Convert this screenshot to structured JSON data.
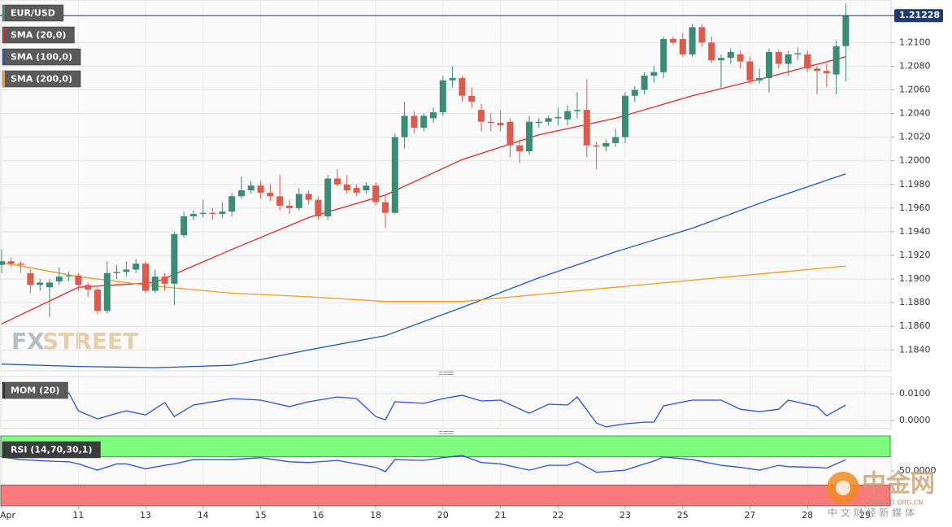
{
  "chart_data": [
    {
      "type": "candlestick",
      "title": "EUR/USD",
      "categories": [
        "Apr",
        null,
        null,
        null,
        null,
        null,
        null,
        null,
        "11",
        null,
        null,
        null,
        null,
        null,
        null,
        "13",
        null,
        null,
        null,
        null,
        null,
        "14",
        null,
        null,
        null,
        null,
        null,
        "15",
        null,
        null,
        null,
        null,
        null,
        "16",
        null,
        null,
        null,
        null,
        null,
        "18",
        null,
        null,
        null,
        null,
        null,
        null,
        "20",
        null,
        null,
        null,
        null,
        null,
        "21",
        null,
        null,
        null,
        null,
        null,
        "22",
        null,
        null,
        null,
        null,
        null,
        null,
        "23",
        null,
        null,
        null,
        null,
        null,
        "25",
        null,
        null,
        null,
        null,
        null,
        null,
        "27",
        null,
        null,
        null,
        null,
        null,
        "28",
        null,
        null,
        null,
        null,
        null,
        "29"
      ],
      "open": [
        1.1912,
        1.1915,
        1.1913,
        1.1905,
        1.1895,
        1.1893,
        1.1898,
        1.1903,
        1.1903,
        1.1895,
        1.1891,
        1.1873,
        1.1905,
        1.1906,
        1.1908,
        1.1913,
        1.189,
        1.1902,
        1.1896,
        1.1937,
        1.1953,
        1.1955,
        1.1956,
        1.1955,
        1.1957,
        1.197,
        1.1975,
        1.1979,
        1.1973,
        1.197,
        1.1962,
        1.196,
        1.1972,
        1.1967,
        1.1953,
        1.1985,
        1.198,
        1.1977,
        1.1975,
        1.1979,
        1.1965,
        1.1956,
        1.202,
        1.2038,
        1.2028,
        1.2036,
        1.2041,
        1.2068,
        1.207,
        1.2055,
        1.2043,
        1.2033,
        1.2032,
        1.2033,
        1.2013,
        1.2008,
        1.2032,
        1.2033,
        1.2036,
        1.2035,
        1.2042,
        1.2043,
        1.2013,
        1.2012,
        1.2015,
        1.202,
        1.2055,
        1.206,
        1.2072,
        1.2075,
        1.2103,
        1.2103,
        1.209,
        1.2113,
        1.21,
        1.2085,
        1.2087,
        1.209,
        1.2084,
        1.2068,
        1.207,
        1.2092,
        1.2082,
        1.209,
        1.209,
        1.2078,
        1.2076,
        1.2073,
        1.2097,
        null,
        null
      ],
      "high": [
        1.1925,
        1.1918,
        1.1915,
        1.1908,
        1.19,
        1.19,
        1.191,
        1.1906,
        1.1905,
        1.1897,
        1.1893,
        1.1915,
        1.1912,
        1.1915,
        1.1917,
        1.1915,
        1.1908,
        1.1905,
        1.194,
        1.1957,
        1.1958,
        1.1967,
        1.196,
        1.1965,
        1.1973,
        1.1987,
        1.1983,
        1.1983,
        1.198,
        1.1988,
        1.1967,
        1.1977,
        1.1975,
        1.197,
        1.1988,
        1.1993,
        1.1988,
        1.198,
        1.1982,
        1.1982,
        1.197,
        1.2023,
        1.205,
        1.2042,
        1.204,
        1.2045,
        1.2072,
        1.208,
        1.2072,
        1.2062,
        1.2048,
        1.204,
        1.2043,
        1.2036,
        1.2018,
        1.2038,
        1.2036,
        1.2038,
        1.2045,
        1.2047,
        1.2058,
        1.2069,
        1.2016,
        1.2018,
        1.2027,
        1.2058,
        1.2063,
        1.2075,
        1.208,
        1.2105,
        1.2105,
        1.2108,
        1.2116,
        1.2116,
        1.2105,
        1.209,
        1.2095,
        1.2093,
        1.2088,
        1.2078,
        1.2095,
        1.2094,
        1.2093,
        1.2096,
        1.2093,
        1.208,
        1.2082,
        1.2102,
        1.2133,
        null,
        null
      ],
      "low": [
        1.1905,
        1.191,
        1.1905,
        1.1888,
        1.189,
        1.1868,
        1.1895,
        1.1898,
        1.189,
        1.1885,
        1.187,
        1.1871,
        1.19,
        1.1902,
        1.1905,
        1.1888,
        1.1888,
        1.189,
        1.1878,
        1.1935,
        1.195,
        1.1952,
        1.195,
        1.1952,
        1.1953,
        1.1968,
        1.1972,
        1.1968,
        1.1966,
        1.1958,
        1.1955,
        1.1958,
        1.1963,
        1.195,
        1.195,
        1.1978,
        1.1972,
        1.197,
        1.1972,
        1.1962,
        1.1943,
        1.1955,
        1.201,
        1.2023,
        1.2025,
        1.2032,
        1.2038,
        1.2062,
        1.205,
        1.2045,
        1.2025,
        1.2025,
        1.2025,
        1.2003,
        1.1998,
        1.2005,
        1.2028,
        1.203,
        1.203,
        1.203,
        1.2036,
        1.2003,
        1.1993,
        1.2008,
        1.2012,
        1.2015,
        1.205,
        1.2056,
        1.2066,
        1.207,
        1.2098,
        1.2088,
        1.2088,
        1.2096,
        1.2083,
        1.2062,
        1.2082,
        1.2078,
        1.2065,
        1.2065,
        1.2058,
        1.2078,
        1.2072,
        1.2085,
        1.2075,
        1.2056,
        1.2062,
        1.2056,
        1.2067,
        null,
        null
      ],
      "close": [
        1.1915,
        1.1913,
        1.1912,
        1.1895,
        1.1897,
        1.1897,
        1.1902,
        1.1903,
        1.1895,
        1.1891,
        1.1873,
        1.1905,
        1.1906,
        1.1908,
        1.1913,
        1.189,
        1.1902,
        1.1896,
        1.1938,
        1.1953,
        1.1955,
        1.1956,
        1.1955,
        1.1957,
        1.197,
        1.1975,
        1.1979,
        1.1973,
        1.197,
        1.1962,
        1.196,
        1.1972,
        1.1967,
        1.1953,
        1.1985,
        1.198,
        1.1975,
        1.1973,
        1.1979,
        1.1965,
        1.1956,
        1.202,
        1.2038,
        1.2028,
        1.2038,
        1.2041,
        1.2068,
        1.207,
        1.2055,
        1.205,
        1.2033,
        1.2032,
        1.203,
        1.2013,
        1.2008,
        1.2033,
        1.2033,
        1.2036,
        1.2037,
        1.2042,
        1.2043,
        1.2013,
        1.2012,
        1.2015,
        1.202,
        1.2055,
        1.206,
        1.2072,
        1.2075,
        1.2103,
        1.21,
        1.209,
        1.2113,
        1.21,
        1.2085,
        1.2087,
        1.2092,
        1.2084,
        1.2068,
        1.207,
        1.2092,
        1.2082,
        1.209,
        1.2091,
        1.2078,
        1.2076,
        1.2074,
        1.2097,
        1.2123,
        null,
        null
      ],
      "up_color": "#3b8c76",
      "down_color": "#e05a4c",
      "series": [
        {
          "name": "SMA (20,0)",
          "color": "#e8262a",
          "x": [
            0,
            8,
            16,
            24,
            32,
            40,
            48,
            56,
            64,
            72,
            80,
            88
          ],
          "values": [
            1.1862,
            1.1893,
            1.1897,
            1.1925,
            1.1952,
            1.1971,
            1.2001,
            1.2022,
            1.2036,
            1.2055,
            1.2071,
            1.2088
          ]
        },
        {
          "name": "SMA (100,0)",
          "color": "#1f5bb5",
          "x": [
            0,
            8,
            16,
            24,
            32,
            40,
            48,
            56,
            64,
            72,
            80,
            88
          ],
          "values": [
            1.1828,
            1.1826,
            1.1825,
            1.1827,
            1.184,
            1.1852,
            1.1876,
            1.1901,
            1.1923,
            1.1943,
            1.1967,
            1.1989
          ]
        },
        {
          "name": "SMA (200,0)",
          "color": "#f39c1f",
          "x": [
            0,
            8,
            16,
            24,
            32,
            40,
            48,
            56,
            64,
            72,
            80,
            88
          ],
          "values": [
            1.1914,
            1.1902,
            1.1894,
            1.1888,
            1.1885,
            1.1881,
            1.1881,
            1.1887,
            1.1893,
            1.1899,
            1.1905,
            1.1911
          ]
        }
      ],
      "ylim": [
        1.1823,
        1.2136
      ],
      "yticks": [
        {
          "value": 1.21,
          "label": "1.2100"
        },
        {
          "value": 1.208,
          "label": "1.2080"
        },
        {
          "value": 1.206,
          "label": "1.2060"
        },
        {
          "value": 1.204,
          "label": "1.2040"
        },
        {
          "value": 1.202,
          "label": "1.2020"
        },
        {
          "value": 1.2,
          "label": "1.2000"
        },
        {
          "value": 1.198,
          "label": "1.1980"
        },
        {
          "value": 1.196,
          "label": "1.1960"
        },
        {
          "value": 1.194,
          "label": "1.1940"
        },
        {
          "value": 1.192,
          "label": "1.1920"
        },
        {
          "value": 1.19,
          "label": "1.1900"
        },
        {
          "value": 1.188,
          "label": "1.1880"
        },
        {
          "value": 1.186,
          "label": "1.1860"
        },
        {
          "value": 1.184,
          "label": "1.1840"
        }
      ],
      "last_price": 1.21228,
      "last_price_color": "#1f3a6e",
      "grid": true
    },
    {
      "type": "line",
      "title": "MOM (20)",
      "series": [
        {
          "color": "#2b50e0",
          "x": [
            0,
            2,
            5,
            7,
            8,
            10,
            12,
            13,
            15,
            17,
            18,
            20,
            24,
            27,
            30,
            32,
            35,
            37,
            39,
            40,
            41,
            44,
            46,
            48,
            50,
            52,
            55,
            57,
            59,
            60,
            62,
            63,
            65,
            67,
            68,
            69,
            72,
            75,
            77,
            79,
            81,
            82,
            85,
            86,
            88
          ],
          "values": [
            0.014,
            0.012,
            0.0118,
            0.0103,
            0.0036,
            0.0006,
            0.0027,
            0.0036,
            0.0021,
            0.0067,
            0.0015,
            0.0058,
            0.0082,
            0.0076,
            0.0052,
            0.007,
            0.0088,
            0.0082,
            0.0015,
            0.0003,
            0.007,
            0.0064,
            0.0082,
            0.0094,
            0.0073,
            0.0076,
            0.0027,
            0.0061,
            0.0058,
            0.0088,
            -0.0009,
            -0.0024,
            -0.0012,
            -0.0006,
            -0.0006,
            0.0055,
            0.0076,
            0.0076,
            0.0042,
            0.0033,
            0.0042,
            0.0076,
            0.0052,
            0.0018,
            0.0058
          ]
        }
      ],
      "ylim": [
        -0.003,
        0.0164
      ],
      "yticks": [
        {
          "value": 0.01,
          "label": "0.0100"
        },
        {
          "value": 0,
          "label": "0.0000"
        }
      ],
      "grid": true
    },
    {
      "type": "line",
      "title": "RSI (14,70,30,1)",
      "series": [
        {
          "color": "#2b50e0",
          "x": [
            0,
            2,
            5,
            7,
            8,
            10,
            12,
            13,
            15,
            17,
            18,
            20,
            24,
            27,
            30,
            32,
            35,
            37,
            39,
            40,
            41,
            44,
            46,
            48,
            50,
            52,
            55,
            57,
            59,
            60,
            62,
            63,
            65,
            67,
            68,
            69,
            72,
            75,
            77,
            79,
            81,
            82,
            85,
            86,
            88
          ],
          "values": [
            70,
            66,
            64,
            63,
            60,
            51,
            60,
            60,
            53,
            58,
            60,
            66,
            66,
            69,
            63,
            62,
            65,
            60,
            55,
            49,
            66,
            65,
            69,
            72,
            62,
            60,
            51,
            58,
            58,
            63,
            48,
            49,
            51,
            60,
            64,
            70,
            66,
            58,
            55,
            51,
            58,
            56,
            55,
            54,
            66
          ]
        }
      ],
      "bands": [
        {
          "from": 70,
          "to": 100,
          "color": "#7dfc7d"
        },
        {
          "from": 0,
          "to": 30,
          "color": "#f87a7a"
        }
      ],
      "ylim": [
        0,
        100
      ],
      "yticks": [
        {
          "value": 50,
          "label": "50.0000"
        }
      ],
      "grid": false
    }
  ],
  "watermarks": {
    "brand_a": "FX",
    "brand_b": "STREET",
    "cn_name": "中金网",
    "cn_domain": "CNGOLD.ORG.CN",
    "cn_slogan": "中 文 财 经 新 媒 体"
  }
}
